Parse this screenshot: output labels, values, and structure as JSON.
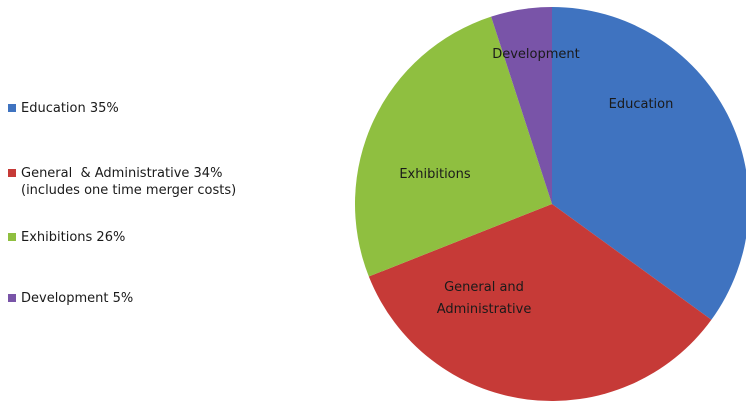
{
  "chart_data": {
    "type": "pie",
    "title": "",
    "slices": [
      {
        "name": "Education",
        "value": 35,
        "color": "#3f73c0",
        "legend_label": [
          "Education 35%"
        ],
        "slice_label": [
          "Education"
        ]
      },
      {
        "name": "General & Administrative",
        "value": 34,
        "color": "#c63a37",
        "legend_label": [
          "General  & Administrative 34%",
          "(includes one time merger costs)"
        ],
        "slice_label": [
          "General and",
          "Administrative"
        ]
      },
      {
        "name": "Exhibitions",
        "value": 26,
        "color": "#8fbf40",
        "legend_label": [
          "Exhibitions 26%"
        ],
        "slice_label": [
          "Exhibitions"
        ]
      },
      {
        "name": "Development",
        "value": 5,
        "color": "#7954a8",
        "legend_label": [
          "Development 5%"
        ],
        "slice_label": [
          "Development"
        ]
      }
    ],
    "legend_position": "left",
    "start_angle": "12 o'clock",
    "direction": "clockwise"
  }
}
